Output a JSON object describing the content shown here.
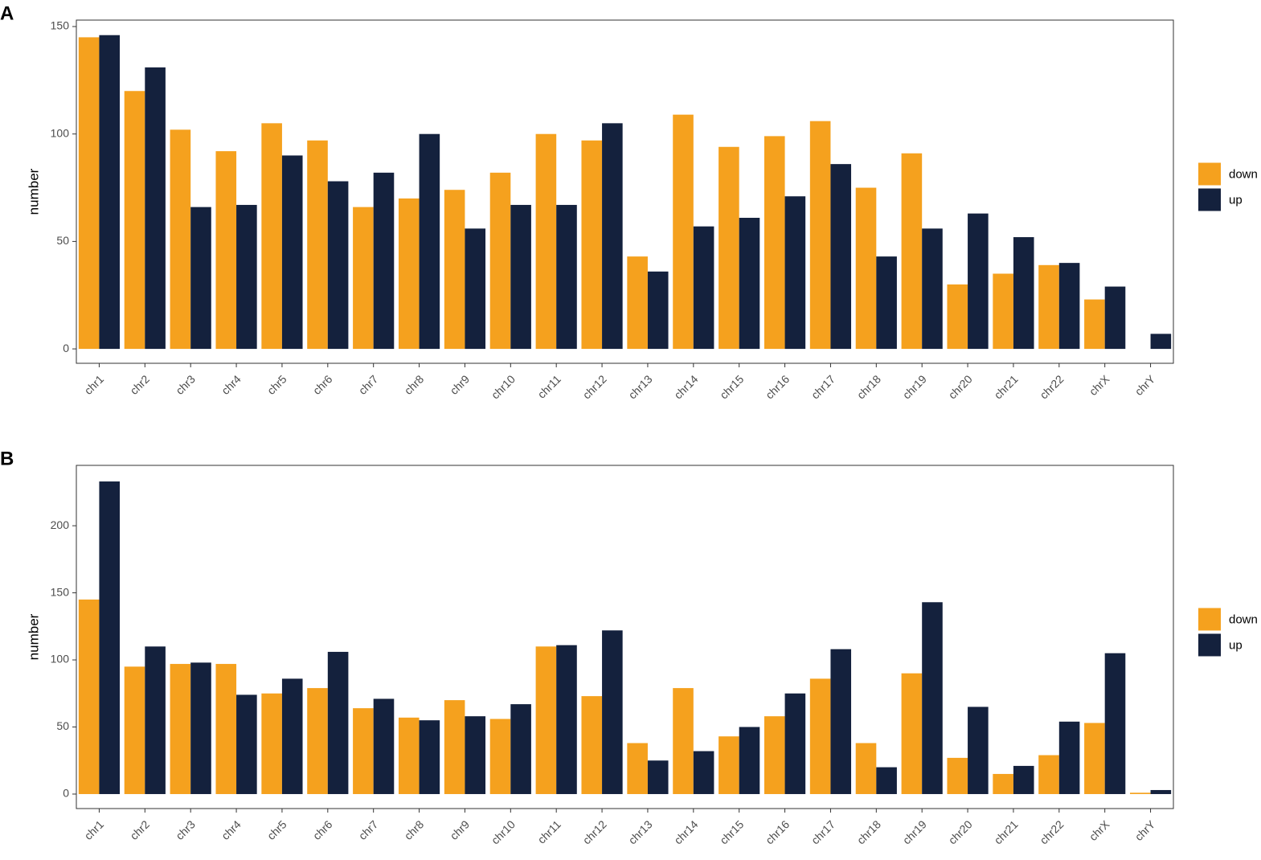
{
  "chart_data": [
    {
      "type": "bar",
      "panel_label": "A",
      "ylabel": "number",
      "categories": [
        "chr1",
        "chr2",
        "chr3",
        "chr4",
        "chr5",
        "chr6",
        "chr7",
        "chr8",
        "chr9",
        "chr10",
        "chr11",
        "chr12",
        "chr13",
        "chr14",
        "chr15",
        "chr16",
        "chr17",
        "chr18",
        "chr19",
        "chr20",
        "chr21",
        "chr22",
        "chrX",
        "chrY"
      ],
      "series": [
        {
          "name": "down",
          "color": "#f5a11e",
          "values": [
            145,
            120,
            102,
            92,
            105,
            97,
            66,
            70,
            74,
            82,
            100,
            97,
            43,
            109,
            94,
            99,
            106,
            75,
            91,
            30,
            35,
            39,
            23,
            0
          ]
        },
        {
          "name": "up",
          "color": "#14213d",
          "values": [
            146,
            131,
            66,
            67,
            90,
            78,
            82,
            100,
            56,
            67,
            67,
            105,
            36,
            57,
            61,
            71,
            86,
            43,
            56,
            63,
            52,
            40,
            29,
            7
          ]
        }
      ],
      "ylim": [
        -6.7,
        153
      ],
      "yticks": [
        0,
        50,
        100,
        150
      ],
      "grid": false,
      "legend": "right"
    },
    {
      "type": "bar",
      "panel_label": "B",
      "ylabel": "number",
      "categories": [
        "chr1",
        "chr2",
        "chr3",
        "chr4",
        "chr5",
        "chr6",
        "chr7",
        "chr8",
        "chr9",
        "chr10",
        "chr11",
        "chr12",
        "chr13",
        "chr14",
        "chr15",
        "chr16",
        "chr17",
        "chr18",
        "chr19",
        "chr20",
        "chr21",
        "chr22",
        "chrX",
        "chrY"
      ],
      "series": [
        {
          "name": "down",
          "color": "#f5a11e",
          "values": [
            145,
            95,
            97,
            97,
            75,
            79,
            64,
            57,
            70,
            56,
            110,
            73,
            38,
            79,
            43,
            58,
            86,
            38,
            90,
            27,
            15,
            29,
            53,
            1
          ]
        },
        {
          "name": "up",
          "color": "#14213d",
          "values": [
            233,
            110,
            98,
            74,
            86,
            106,
            71,
            55,
            58,
            67,
            111,
            122,
            25,
            32,
            50,
            75,
            108,
            20,
            143,
            65,
            21,
            54,
            105,
            3
          ]
        }
      ],
      "ylim": [
        -10.8,
        245
      ],
      "yticks": [
        0,
        50,
        100,
        150,
        200
      ],
      "grid": false,
      "legend": "right"
    }
  ]
}
